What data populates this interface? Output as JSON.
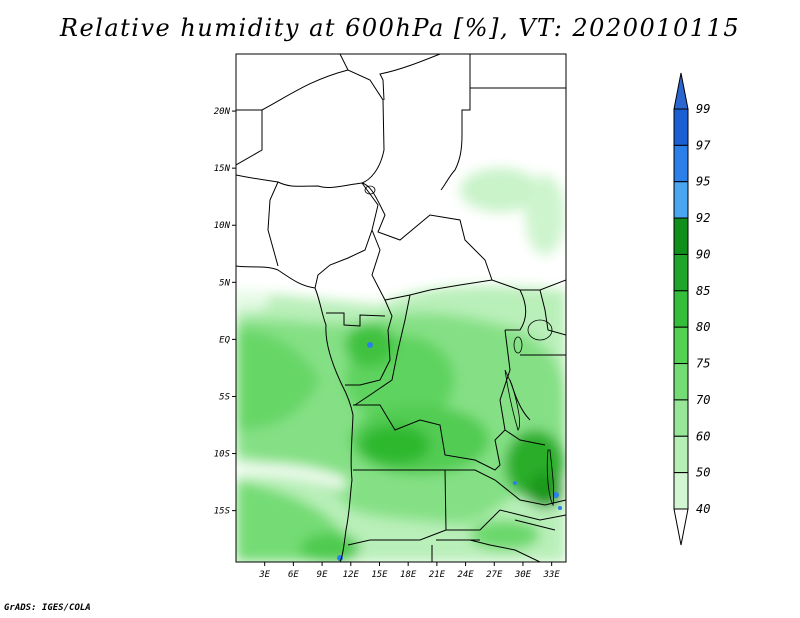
{
  "title": "Relative humidity at 600hPa [%], VT: 2020010115",
  "footer": "GrADS: IGES/COLA",
  "map": {
    "lon_range": [
      0,
      34.5
    ],
    "lat_range": [
      -19.5,
      25
    ],
    "lat_ticks": [
      {
        "label": "20N",
        "value": 20
      },
      {
        "label": "15N",
        "value": 15
      },
      {
        "label": "10N",
        "value": 10
      },
      {
        "label": "5N",
        "value": 5
      },
      {
        "label": "EQ",
        "value": 0
      },
      {
        "label": "5S",
        "value": -5
      },
      {
        "label": "10S",
        "value": -10
      },
      {
        "label": "15S",
        "value": -15
      }
    ],
    "lon_ticks": [
      {
        "label": "3E",
        "value": 3
      },
      {
        "label": "6E",
        "value": 6
      },
      {
        "label": "9E",
        "value": 9
      },
      {
        "label": "12E",
        "value": 12
      },
      {
        "label": "15E",
        "value": 15
      },
      {
        "label": "18E",
        "value": 18
      },
      {
        "label": "21E",
        "value": 21
      },
      {
        "label": "24E",
        "value": 24
      },
      {
        "label": "27E",
        "value": 27
      },
      {
        "label": "30E",
        "value": 30
      },
      {
        "label": "33E",
        "value": 33
      }
    ]
  },
  "colorbar": {
    "labels": [
      "99",
      "97",
      "95",
      "92",
      "90",
      "85",
      "80",
      "75",
      "70",
      "60",
      "50",
      "40"
    ],
    "colors": [
      "#1a5fd4",
      "#2b7fe8",
      "#4aa6f0",
      "#10901a",
      "#1fa52a",
      "#34be3c",
      "#52d152",
      "#74dc74",
      "#98e698",
      "#b6efb6",
      "#d2f6d2",
      "#ecfbec"
    ],
    "top_arrow_color": "#2a66d0",
    "bottom_arrow_color": "#ffffff"
  }
}
